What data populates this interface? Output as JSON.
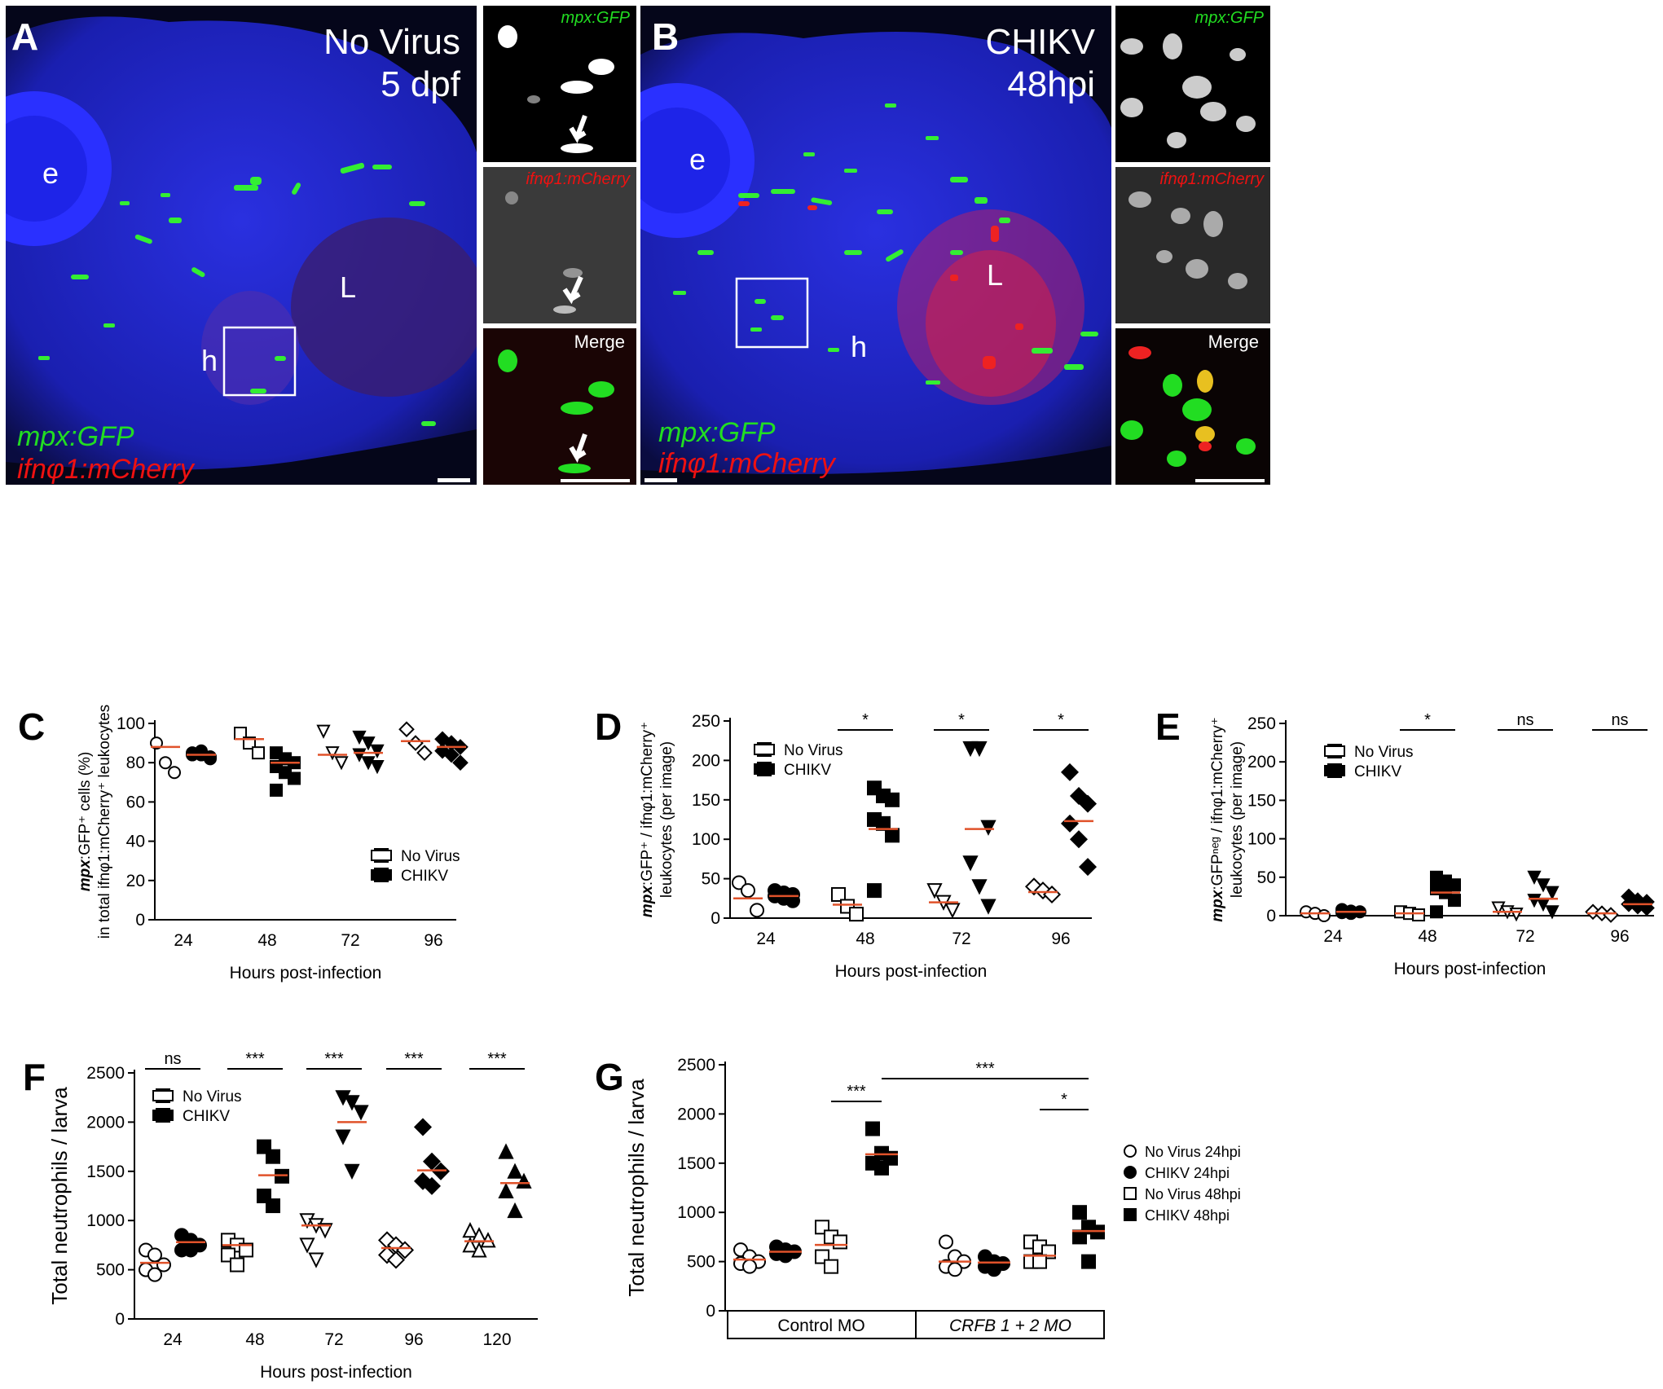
{
  "panelA": {
    "letter": "A",
    "title_line1": "No Virus",
    "title_line2": "5 dpf",
    "label_e": "e",
    "label_L": "L",
    "label_h": "h",
    "legend_green": "mpx:GFP",
    "legend_red": "ifnφ1:mCherry",
    "inset_green": "mpx:GFP",
    "inset_red": "ifnφ1:mCherry",
    "inset_merge": "Merge"
  },
  "panelB": {
    "letter": "B",
    "title_line1": "CHIKV",
    "title_line2": "48hpi",
    "label_e": "e",
    "label_L": "L",
    "label_h": "h",
    "legend_green": "mpx:GFP",
    "legend_red": "ifnφ1:mCherry",
    "inset_green": "mpx:GFP",
    "inset_red": "ifnφ1:mCherry",
    "inset_merge": "Merge"
  },
  "colors": {
    "micro_bg": "#05061a",
    "tissue_blue": "#1a1fd0",
    "gfp_green": "#22dd22",
    "mcherry_red": "#ee1111",
    "median_line": "#e0522a"
  },
  "chart_data": [
    {
      "id": "C",
      "letter": "C",
      "type": "scatter",
      "ylabel_bold": "mpx",
      "ylabel_line1": ":GFP⁺ cells (%)",
      "ylabel_line2": "in total ifnφ1:mCherry⁺ leukocytes",
      "xlabel": "Hours post-infection",
      "categories": [
        "24",
        "48",
        "72",
        "96"
      ],
      "ylim": [
        0,
        100
      ],
      "yticks": [
        "0",
        "20",
        "40",
        "60",
        "80",
        "100"
      ],
      "legend": [
        "No Virus",
        "CHIKV"
      ],
      "legend_position": "center-right",
      "series": [
        {
          "name": "No Virus",
          "marker": [
            "circle",
            "square",
            "triangle-down",
            "diamond"
          ],
          "values": [
            [
              90,
              80,
              75
            ],
            [
              95,
              90,
              85
            ],
            [
              96,
              85,
              80
            ],
            [
              97,
              90,
              85
            ]
          ],
          "medians": [
            88,
            92,
            84,
            91
          ]
        },
        {
          "name": "CHIKV",
          "marker": [
            "circle",
            "square",
            "triangle-down",
            "diamond"
          ],
          "values": [
            [
              84,
              86,
              83,
              85,
              84,
              82
            ],
            [
              85,
              82,
              80,
              78,
              75,
              72,
              66
            ],
            [
              93,
              90,
              86,
              84,
              80,
              78
            ],
            [
              92,
              90,
              88,
              86,
              84,
              80
            ]
          ],
          "medians": [
            84,
            80,
            85,
            88
          ]
        }
      ],
      "significance": []
    },
    {
      "id": "D",
      "letter": "D",
      "type": "scatter",
      "ylabel_bold": "mpx",
      "ylabel_line1": ":GFP⁺ / ifnφ1:mCherry⁺",
      "ylabel_line2": "leukocytes (per image)",
      "xlabel": "Hours post-infection",
      "categories": [
        "24",
        "48",
        "72",
        "96"
      ],
      "ylim": [
        0,
        250
      ],
      "yticks": [
        "0",
        "50",
        "100",
        "150",
        "200",
        "250"
      ],
      "legend": [
        "No Virus",
        "CHIKV"
      ],
      "legend_position": "top-left",
      "series": [
        {
          "name": "No Virus",
          "marker": [
            "circle",
            "square",
            "triangle-down",
            "diamond"
          ],
          "values": [
            [
              45,
              35,
              10
            ],
            [
              30,
              15,
              5
            ],
            [
              35,
              20,
              10
            ],
            [
              40,
              35,
              30
            ]
          ],
          "medians": [
            25,
            17,
            20,
            33
          ]
        },
        {
          "name": "CHIKV",
          "marker": [
            "circle",
            "square",
            "triangle-down",
            "diamond"
          ],
          "values": [
            [
              35,
              32,
              30,
              28,
              25,
              22
            ],
            [
              165,
              155,
              150,
              125,
              120,
              105,
              35
            ],
            [
              215,
              215,
              115,
              70,
              40,
              15
            ],
            [
              185,
              155,
              145,
              120,
              100,
              65
            ]
          ],
          "medians": [
            28,
            113,
            113,
            123
          ]
        }
      ],
      "significance": [
        {
          "label": "*",
          "cat": 1
        },
        {
          "label": "*",
          "cat": 2
        },
        {
          "label": "*",
          "cat": 3
        }
      ]
    },
    {
      "id": "E",
      "letter": "E",
      "type": "scatter",
      "ylabel_bold": "mpx",
      "ylabel_line1": ":GFPⁿᵉᵍ / ifnφ1:mCherry⁺",
      "ylabel_line2": "leukocytes (per image)",
      "xlabel": "Hours post-infection",
      "categories": [
        "24",
        "48",
        "72",
        "96"
      ],
      "ylim": [
        0,
        250
      ],
      "yticks": [
        "0",
        "50",
        "100",
        "150",
        "200",
        "250"
      ],
      "legend": [
        "No Virus",
        "CHIKV"
      ],
      "legend_position": "top-left",
      "series": [
        {
          "name": "No Virus",
          "marker": [
            "circle",
            "square",
            "triangle-down",
            "diamond"
          ],
          "values": [
            [
              5,
              3,
              0
            ],
            [
              5,
              3,
              1
            ],
            [
              10,
              5,
              2
            ],
            [
              5,
              3,
              1
            ]
          ],
          "medians": [
            3,
            3,
            5,
            3
          ]
        },
        {
          "name": "CHIKV",
          "marker": [
            "circle",
            "square",
            "triangle-down",
            "diamond"
          ],
          "values": [
            [
              8,
              6,
              5,
              4,
              3
            ],
            [
              50,
              45,
              40,
              35,
              30,
              20,
              5
            ],
            [
              50,
              40,
              30,
              20,
              15,
              5
            ],
            [
              25,
              20,
              18,
              15,
              12,
              10
            ]
          ],
          "medians": [
            5,
            30,
            22,
            15
          ]
        }
      ],
      "significance": [
        {
          "label": "*",
          "cat": 1
        },
        {
          "label": "ns",
          "cat": 2
        },
        {
          "label": "ns",
          "cat": 3
        }
      ]
    },
    {
      "id": "F",
      "letter": "F",
      "type": "scatter",
      "ylabel": "Total neutrophils / larva",
      "xlabel": "Hours post-infection",
      "categories": [
        "24",
        "48",
        "72",
        "96",
        "120"
      ],
      "ylim": [
        0,
        2500
      ],
      "yticks": [
        "0",
        "500",
        "1000",
        "1500",
        "2000",
        "2500"
      ],
      "legend": [
        "No Virus",
        "CHIKV"
      ],
      "legend_position": "top-left",
      "series": [
        {
          "name": "No Virus",
          "marker": [
            "circle",
            "square",
            "triangle-down",
            "diamond",
            "triangle-up"
          ],
          "values": [
            [
              700,
              650,
              550,
              500,
              450
            ],
            [
              800,
              750,
              700,
              650,
              550
            ],
            [
              1000,
              950,
              900,
              750,
              600
            ],
            [
              800,
              750,
              700,
              650,
              600
            ],
            [
              900,
              850,
              800,
              750,
              700
            ]
          ],
          "medians": [
            570,
            750,
            950,
            720,
            790
          ]
        },
        {
          "name": "CHIKV",
          "marker": [
            "circle",
            "square",
            "triangle-down",
            "diamond",
            "triangle-up"
          ],
          "values": [
            [
              850,
              800,
              750,
              700,
              700
            ],
            [
              1750,
              1650,
              1450,
              1250,
              1150
            ],
            [
              2250,
              2200,
              2100,
              1850,
              1500
            ],
            [
              1950,
              1600,
              1500,
              1400,
              1350
            ],
            [
              1700,
              1500,
              1400,
              1300,
              1100
            ]
          ],
          "medians": [
            780,
            1460,
            2000,
            1510,
            1380
          ]
        }
      ],
      "significance": [
        {
          "label": "ns",
          "cat": 0
        },
        {
          "label": "***",
          "cat": 1
        },
        {
          "label": "***",
          "cat": 2
        },
        {
          "label": "***",
          "cat": 3
        },
        {
          "label": "***",
          "cat": 4
        }
      ]
    },
    {
      "id": "G",
      "letter": "G",
      "type": "scatter",
      "ylabel": "Total neutrophils / larva",
      "group_labels": [
        "Control MO",
        "CRFB 1 + 2 MO"
      ],
      "ylim": [
        0,
        2500
      ],
      "yticks": [
        "0",
        "500",
        "1000",
        "1500",
        "2000",
        "2500"
      ],
      "legend": [
        "No Virus 24hpi",
        "CHIKV 24hpi",
        "No Virus 48hpi",
        "CHIKV 48hpi"
      ],
      "legend_position": "right",
      "groups": [
        {
          "name": "Control MO",
          "values": [
            [
              620,
              550,
              500,
              480,
              450
            ],
            [
              650,
              620,
              600,
              580,
              560
            ],
            [
              850,
              750,
              700,
              550,
              450
            ],
            [
              1850,
              1600,
              1550,
              1500,
              1450
            ]
          ],
          "medians": [
            520,
            600,
            670,
            1590
          ]
        },
        {
          "name": "CRFB 1 + 2 MO",
          "values": [
            [
              700,
              550,
              500,
              450,
              420
            ],
            [
              550,
              500,
              480,
              450,
              420
            ],
            [
              700,
              650,
              600,
              500,
              500
            ],
            [
              1000,
              850,
              800,
              750,
              500
            ]
          ],
          "medians": [
            500,
            490,
            560,
            810
          ]
        }
      ],
      "significance": [
        {
          "label": "***",
          "from": [
            0,
            2
          ],
          "to": [
            0,
            3
          ]
        },
        {
          "label": "***",
          "from": [
            0,
            3
          ],
          "to": [
            1,
            3
          ]
        },
        {
          "label": "*",
          "from": [
            1,
            2
          ],
          "to": [
            1,
            3
          ]
        }
      ]
    }
  ]
}
